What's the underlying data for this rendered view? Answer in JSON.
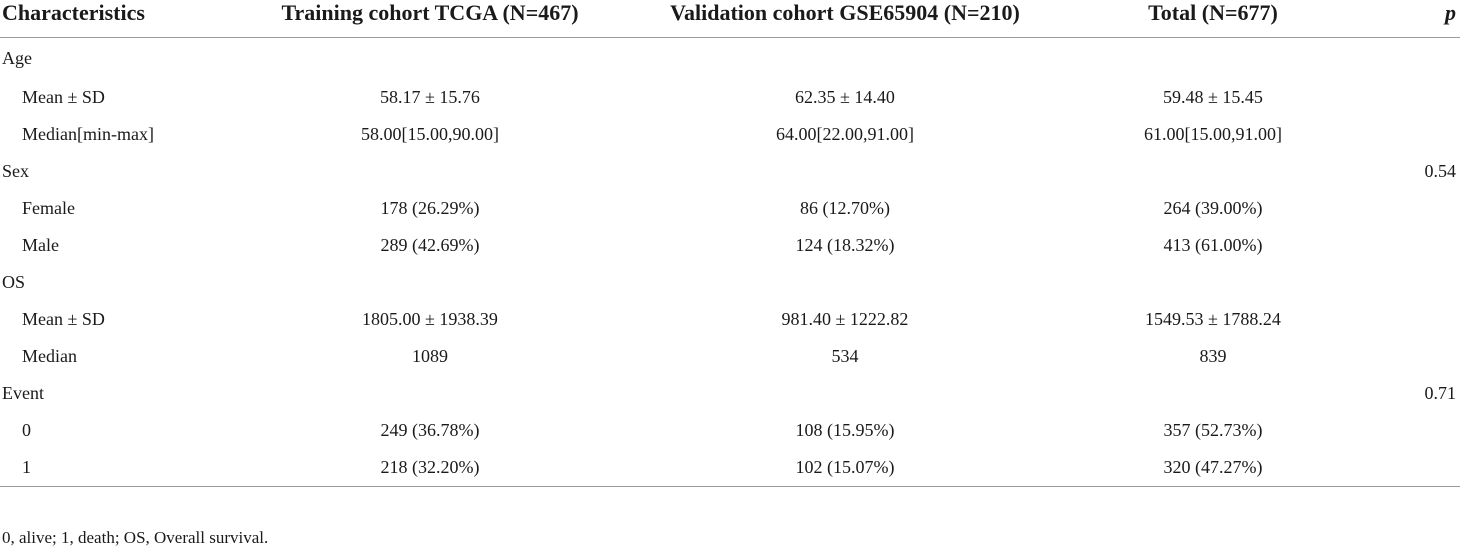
{
  "table": {
    "headers": [
      "Characteristics",
      "Training cohort TCGA (N=467)",
      "Validation cohort GSE65904 (N=210)",
      "Total (N=677)",
      "p"
    ],
    "rows": [
      {
        "label": "Age",
        "sub": false,
        "training": "",
        "validation": "",
        "total": "",
        "p": ""
      },
      {
        "label": "Mean ± SD",
        "sub": true,
        "training": "58.17 ± 15.76",
        "validation": "62.35 ± 14.40",
        "total": "59.48 ± 15.45",
        "p": ""
      },
      {
        "label": "Median[min-max]",
        "sub": true,
        "training": "58.00[15.00,90.00]",
        "validation": "64.00[22.00,91.00]",
        "total": "61.00[15.00,91.00]",
        "p": ""
      },
      {
        "label": "Sex",
        "sub": false,
        "training": "",
        "validation": "",
        "total": "",
        "p": "0.54"
      },
      {
        "label": "Female",
        "sub": true,
        "training": "178 (26.29%)",
        "validation": "86 (12.70%)",
        "total": "264 (39.00%)",
        "p": ""
      },
      {
        "label": "Male",
        "sub": true,
        "training": "289 (42.69%)",
        "validation": "124 (18.32%)",
        "total": "413 (61.00%)",
        "p": ""
      },
      {
        "label": "OS",
        "sub": false,
        "training": "",
        "validation": "",
        "total": "",
        "p": ""
      },
      {
        "label": "Mean ± SD",
        "sub": true,
        "training": "1805.00 ± 1938.39",
        "validation": "981.40 ± 1222.82",
        "total": "1549.53 ± 1788.24",
        "p": ""
      },
      {
        "label": "Median",
        "sub": true,
        "training": "1089",
        "validation": "534",
        "total": "839",
        "p": ""
      },
      {
        "label": "Event",
        "sub": false,
        "training": "",
        "validation": "",
        "total": "",
        "p": "0.71"
      },
      {
        "label": "0",
        "sub": true,
        "training": "249 (36.78%)",
        "validation": "108 (15.95%)",
        "total": "357 (52.73%)",
        "p": ""
      },
      {
        "label": "1",
        "sub": true,
        "training": "218 (32.20%)",
        "validation": "102 (15.07%)",
        "total": "320 (47.27%)",
        "p": ""
      }
    ]
  },
  "footnote": "0, alive; 1, death; OS, Overall survival."
}
